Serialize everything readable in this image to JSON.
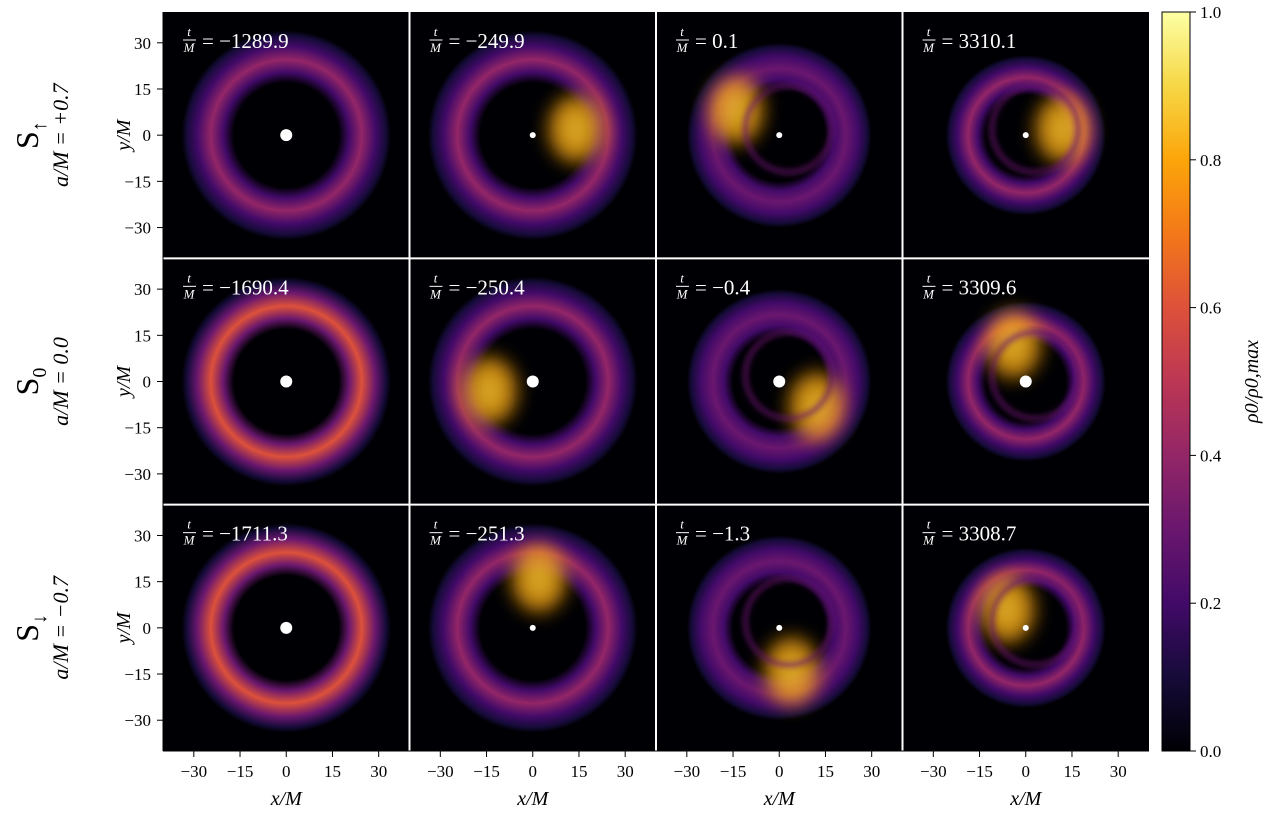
{
  "chart_data": {
    "type": "heatmap",
    "xlabel": "x/M",
    "ylabel": "y/M",
    "xlim": [
      -40,
      40
    ],
    "ylim": [
      -40,
      40
    ],
    "xticks": [
      {
        "value": -30,
        "label": "−30"
      },
      {
        "value": -15,
        "label": "−15"
      },
      0,
      15,
      30
    ],
    "yticks": [
      {
        "value": -30,
        "label": "−30"
      },
      {
        "value": -15,
        "label": "−15"
      },
      0,
      15,
      30
    ],
    "time_symbol": {
      "numerator": "t",
      "denominator": "M"
    },
    "rows": [
      {
        "name": "S",
        "subscript": "↑",
        "spin": "a/M = +0.7",
        "panels": [
          "= −1289.9",
          "= −249.9",
          "= 0.1",
          "= 3310.1"
        ]
      },
      {
        "name": "S",
        "subscript": "0",
        "spin": "a/M = 0.0",
        "panels": [
          "= −1690.4",
          "= −250.4",
          "= −0.4",
          "= 3309.6"
        ]
      },
      {
        "name": "S",
        "subscript": "↓",
        "spin": "a/M = −0.7",
        "panels": [
          "= −1711.3",
          "= −251.3",
          "= −1.3",
          "= 3308.7"
        ]
      }
    ],
    "colorbar": {
      "label": "ρ0/ρ0,max",
      "lim": [
        0,
        1
      ],
      "ticks": [
        {
          "value": 0,
          "label": "0.0"
        },
        0.2,
        0.4,
        0.6,
        0.8,
        {
          "value": 1,
          "label": "1.0"
        }
      ],
      "colormap": [
        "#000004",
        "#160b39",
        "#420a68",
        "#6a176e",
        "#932667",
        "#bc3754",
        "#dd513a",
        "#f37819",
        "#fca50a",
        "#f6d746",
        "#fcffa4"
      ]
    }
  }
}
